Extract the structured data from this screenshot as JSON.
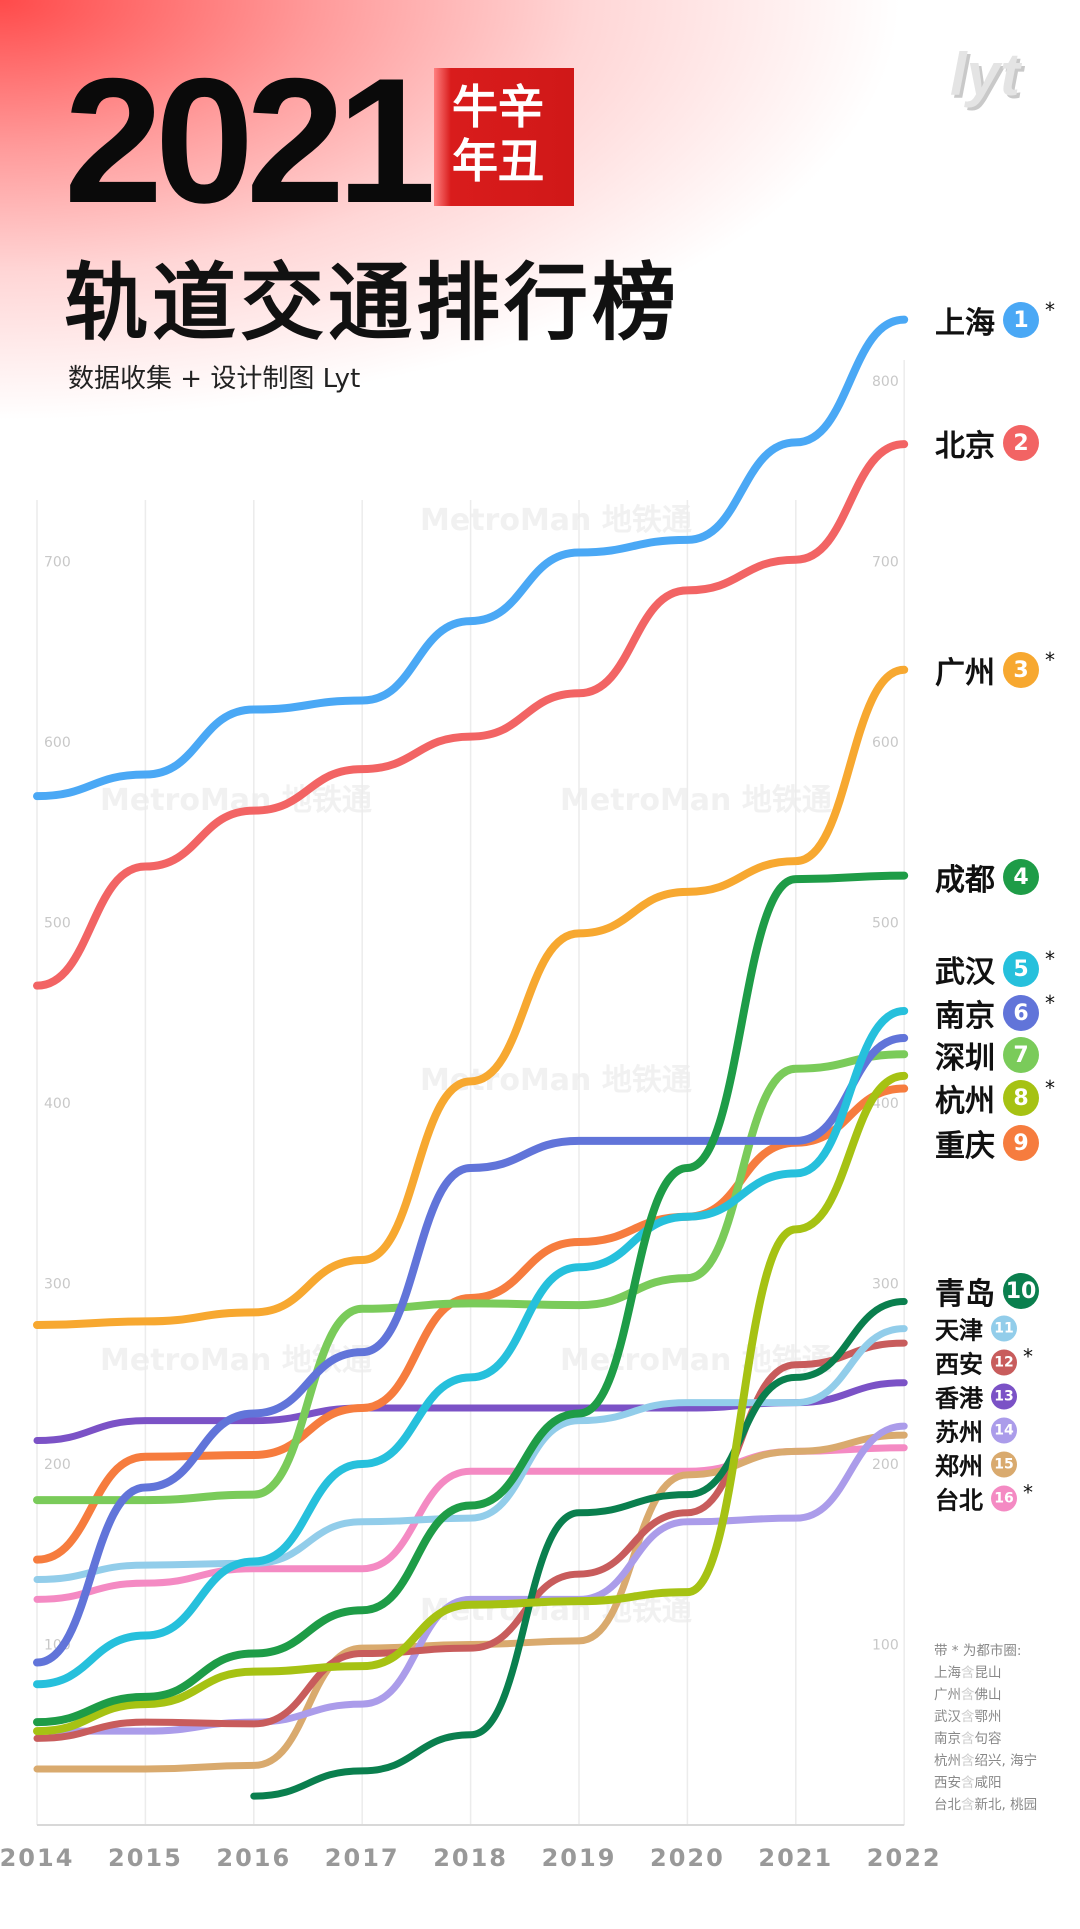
{
  "header": {
    "year": "2021",
    "badge_line1": "牛辛",
    "badge_line2": "年丑",
    "title": "轨道交通排行榜",
    "subtitle": "数据收集 + 设计制图  Lyt",
    "logo": "lyt"
  },
  "watermark": "MetroMan 地铁通",
  "footnote": {
    "heading": "带 * 为都市圈:",
    "word": "含",
    "lines": [
      [
        "上海",
        "昆山"
      ],
      [
        "广州",
        "佛山"
      ],
      [
        "武汉",
        "鄂州"
      ],
      [
        "南京",
        "句容"
      ],
      [
        "杭州",
        "绍兴, 海宁"
      ],
      [
        "西安",
        "咸阳"
      ],
      [
        "台北",
        "新北, 桃园"
      ]
    ]
  },
  "chart_data": {
    "type": "line",
    "title": "轨道交通排行榜",
    "x": [
      2014,
      2015,
      2016,
      2017,
      2018,
      2019,
      2020,
      2021,
      2022
    ],
    "x_tick_labels": [
      "2014",
      "2015",
      "2016",
      "2017",
      "2018",
      "2019",
      "2020",
      "2021",
      "2022"
    ],
    "ylim": [
      0,
      850
    ],
    "left_ticks": [
      "700",
      "600",
      "500",
      "400",
      "300",
      "200",
      "100"
    ],
    "right_ticks": [
      "800",
      "700",
      "600",
      "500",
      "400",
      "300",
      "200",
      "100"
    ],
    "grid": true,
    "legend_placement": "right",
    "series": [
      {
        "name": "上海",
        "rank": "1",
        "star": true,
        "color": "#4aa8f5",
        "values": [
          570,
          582,
          618,
          623,
          667,
          705,
          712,
          766,
          834
        ]
      },
      {
        "name": "北京",
        "rank": "2",
        "star": false,
        "color": "#f26464",
        "values": [
          465,
          531,
          562,
          585,
          603,
          627,
          684,
          701,
          765
        ]
      },
      {
        "name": "广州",
        "rank": "3",
        "star": true,
        "color": "#f7a830",
        "values": [
          277,
          279,
          284,
          313,
          412,
          494,
          517,
          534,
          640
        ]
      },
      {
        "name": "成都",
        "rank": "4",
        "star": false,
        "color": "#1e9c47",
        "values": [
          57,
          71,
          95,
          119,
          177,
          228,
          364,
          524,
          526
        ]
      },
      {
        "name": "武汉",
        "rank": "5",
        "star": true,
        "color": "#26c0dc",
        "values": [
          78,
          105,
          146,
          200,
          248,
          309,
          337,
          361,
          451
        ]
      },
      {
        "name": "南京",
        "rank": "6",
        "star": true,
        "color": "#6174d9",
        "values": [
          90,
          187,
          228,
          262,
          364,
          379,
          379,
          379,
          436
        ]
      },
      {
        "name": "深圳",
        "rank": "7",
        "star": false,
        "color": "#7acb5a",
        "values": [
          180,
          180,
          183,
          286,
          289,
          288,
          303,
          419,
          427
        ]
      },
      {
        "name": "杭州",
        "rank": "8",
        "star": true,
        "color": "#a6c213",
        "values": [
          52,
          67,
          85,
          88,
          122,
          124,
          129,
          330,
          415
        ]
      },
      {
        "name": "重庆",
        "rank": "9",
        "star": false,
        "color": "#f67c3e",
        "values": [
          147,
          204,
          205,
          231,
          292,
          323,
          337,
          378,
          408
        ]
      },
      {
        "name": "青岛",
        "rank": "10",
        "star": false,
        "color": "#0a7f4e",
        "values": [
          null,
          null,
          16,
          30,
          50,
          173,
          183,
          248,
          290
        ]
      },
      {
        "name": "天津",
        "rank": "11",
        "star": false,
        "color": "#92cdea",
        "values": [
          136,
          144,
          145,
          168,
          170,
          224,
          234,
          234,
          275
        ]
      },
      {
        "name": "西安",
        "rank": "12",
        "star": true,
        "color": "#c85c5c",
        "values": [
          48,
          57,
          56,
          95,
          98,
          139,
          173,
          255,
          267
        ]
      },
      {
        "name": "香港",
        "rank": "13",
        "star": false,
        "color": "#7b52c6",
        "values": [
          213,
          224,
          224,
          231,
          231,
          231,
          231,
          234,
          245
        ]
      },
      {
        "name": "苏州",
        "rank": "14",
        "star": false,
        "color": "#ab9cea",
        "values": [
          52,
          52,
          57,
          67,
          125,
          125,
          168,
          170,
          221
        ]
      },
      {
        "name": "郑州",
        "rank": "15",
        "star": false,
        "color": "#d9aa6e",
        "values": [
          31,
          31,
          33,
          98,
          100,
          102,
          194,
          207,
          216
        ]
      },
      {
        "name": "台北",
        "rank": "16",
        "star": true,
        "color": "#f48ac3",
        "values": [
          125,
          134,
          142,
          142,
          196,
          196,
          196,
          207,
          209
        ]
      }
    ]
  }
}
